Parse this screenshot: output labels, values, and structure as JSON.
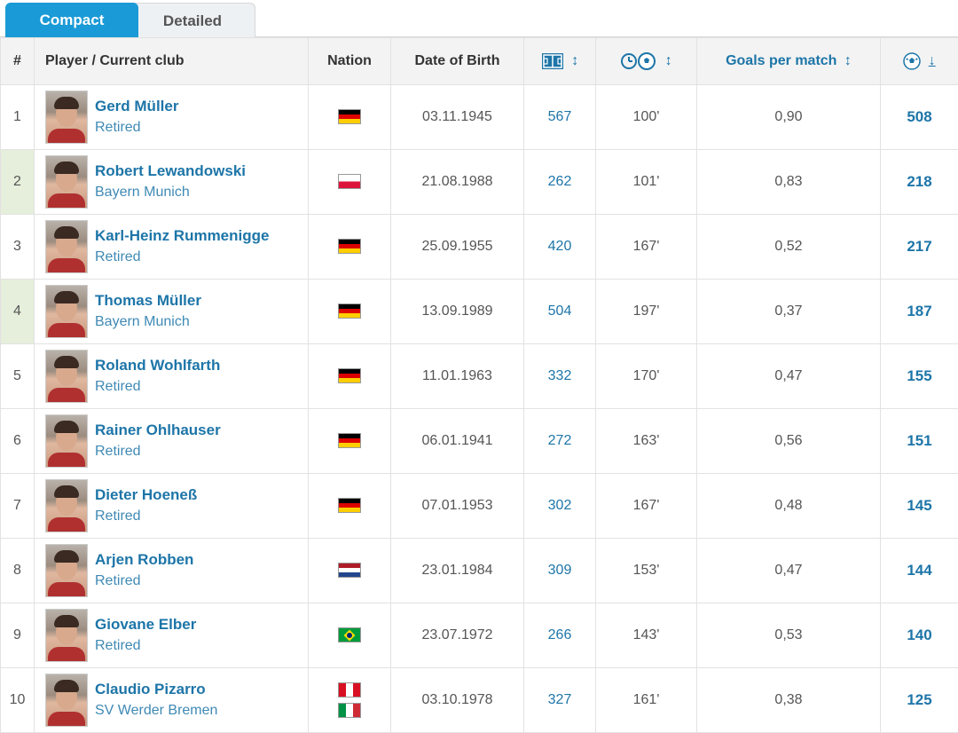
{
  "tabs": {
    "compact": "Compact",
    "detailed": "Detailed"
  },
  "header": {
    "rank": "#",
    "player": "Player / Current club",
    "nation": "Nation",
    "dob": "Date of Birth",
    "goals_per_match": "Goals per match",
    "sort_icon": "↕",
    "sort_desc_icon": "↓"
  },
  "icons": {
    "appearances": "pitch-icon",
    "minutes_per_goal": "clock-ball-icon",
    "goals": "ball-icon"
  },
  "colors": {
    "accent": "#1a9ad6",
    "link": "#1d75a8",
    "highlight": "#e6efdb"
  },
  "rows": [
    {
      "rank": "1",
      "name": "Gerd Müller",
      "club": "Retired",
      "nation": [
        "germany"
      ],
      "dob": "03.11.1945",
      "apps": "567",
      "mpg": "100'",
      "gpm": "0,90",
      "goals": "508",
      "highlight": false
    },
    {
      "rank": "2",
      "name": "Robert Lewandowski",
      "club": "Bayern Munich",
      "nation": [
        "poland"
      ],
      "dob": "21.08.1988",
      "apps": "262",
      "mpg": "101'",
      "gpm": "0,83",
      "goals": "218",
      "highlight": true
    },
    {
      "rank": "3",
      "name": "Karl-Heinz Rummenigge",
      "club": "Retired",
      "nation": [
        "germany"
      ],
      "dob": "25.09.1955",
      "apps": "420",
      "mpg": "167'",
      "gpm": "0,52",
      "goals": "217",
      "highlight": false
    },
    {
      "rank": "4",
      "name": "Thomas Müller",
      "club": "Bayern Munich",
      "nation": [
        "germany"
      ],
      "dob": "13.09.1989",
      "apps": "504",
      "mpg": "197'",
      "gpm": "0,37",
      "goals": "187",
      "highlight": true
    },
    {
      "rank": "5",
      "name": "Roland Wohlfarth",
      "club": "Retired",
      "nation": [
        "germany"
      ],
      "dob": "11.01.1963",
      "apps": "332",
      "mpg": "170'",
      "gpm": "0,47",
      "goals": "155",
      "highlight": false
    },
    {
      "rank": "6",
      "name": "Rainer Ohlhauser",
      "club": "Retired",
      "nation": [
        "germany"
      ],
      "dob": "06.01.1941",
      "apps": "272",
      "mpg": "163'",
      "gpm": "0,56",
      "goals": "151",
      "highlight": false
    },
    {
      "rank": "7",
      "name": "Dieter Hoeneß",
      "club": "Retired",
      "nation": [
        "germany"
      ],
      "dob": "07.01.1953",
      "apps": "302",
      "mpg": "167'",
      "gpm": "0,48",
      "goals": "145",
      "highlight": false
    },
    {
      "rank": "8",
      "name": "Arjen Robben",
      "club": "Retired",
      "nation": [
        "netherlands"
      ],
      "dob": "23.01.1984",
      "apps": "309",
      "mpg": "153'",
      "gpm": "0,47",
      "goals": "144",
      "highlight": false
    },
    {
      "rank": "9",
      "name": "Giovane Elber",
      "club": "Retired",
      "nation": [
        "brazil"
      ],
      "dob": "23.07.1972",
      "apps": "266",
      "mpg": "143'",
      "gpm": "0,53",
      "goals": "140",
      "highlight": false
    },
    {
      "rank": "10",
      "name": "Claudio Pizarro",
      "club": "SV Werder Bremen",
      "nation": [
        "peru",
        "italy"
      ],
      "dob": "03.10.1978",
      "apps": "327",
      "mpg": "161'",
      "gpm": "0,38",
      "goals": "125",
      "highlight": false
    }
  ]
}
